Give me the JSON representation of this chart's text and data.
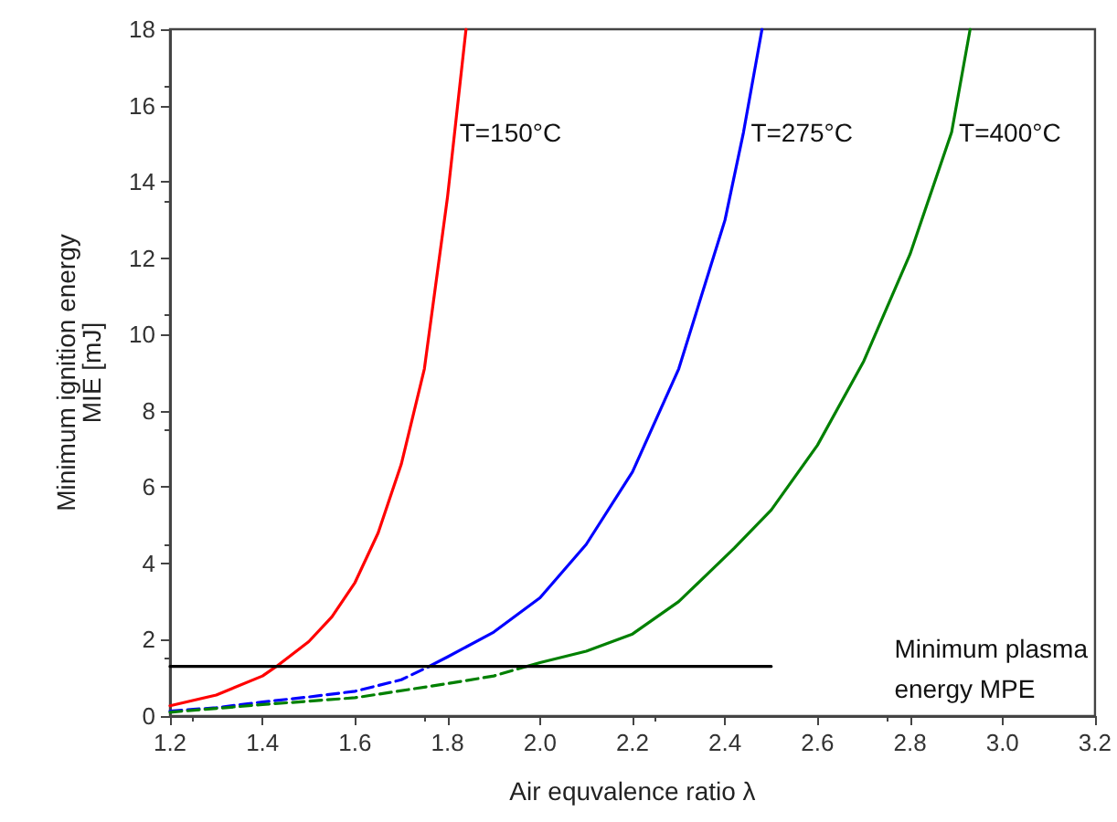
{
  "chart_data": {
    "type": "line",
    "xlabel": "Air equvalence ratio λ",
    "ylabel": "Minimum ignition energy\nMIE [mJ]",
    "xlim": [
      1.2,
      3.2
    ],
    "xticks": [
      1.2,
      1.4,
      1.6,
      1.8,
      {
        "value": 2,
        "label": "2.0"
      },
      2.2,
      2.4,
      2.6,
      2.8,
      {
        "value": 3,
        "label": "3.0"
      },
      3.2
    ],
    "ylim": [
      0,
      18
    ],
    "yticks": [
      0,
      2,
      4,
      6,
      8,
      10,
      12,
      14,
      16,
      18
    ],
    "grid": false,
    "marker": "none",
    "series": [
      {
        "color": "#ff0000",
        "line_style": "solid",
        "x": [
          1.2,
          1.3,
          1.4,
          1.43,
          1.5,
          1.55,
          1.6,
          1.65,
          1.7,
          1.75,
          1.8,
          1.84
        ],
        "values": [
          0.27,
          0.55,
          1.05,
          1.3,
          1.95,
          2.6,
          3.5,
          4.8,
          6.6,
          9.1,
          13.6,
          18
        ]
      },
      {
        "color": "#0000ff",
        "line_style": "dashed",
        "x": [
          1.2,
          1.3,
          1.4,
          1.5,
          1.6,
          1.7,
          1.76
        ],
        "values": [
          0.13,
          0.22,
          0.37,
          0.5,
          0.65,
          0.95,
          1.3
        ]
      },
      {
        "color": "#0000ff",
        "line_style": "solid",
        "x": [
          1.76,
          1.8,
          1.9,
          2.0,
          2.1,
          2.2,
          2.3,
          2.4,
          2.44,
          2.48
        ],
        "values": [
          1.3,
          1.55,
          2.2,
          3.1,
          4.5,
          6.4,
          9.1,
          13,
          15.3,
          18
        ]
      },
      {
        "color": "#008000",
        "line_style": "dashed",
        "x": [
          1.2,
          1.4,
          1.6,
          1.8,
          1.9,
          1.97
        ],
        "values": [
          0.1,
          0.3,
          0.48,
          0.85,
          1.05,
          1.3
        ]
      },
      {
        "color": "#008000",
        "line_style": "solid",
        "x": [
          1.97,
          2.0,
          2.1,
          2.2,
          2.3,
          2.42,
          2.5,
          2.6,
          2.7,
          2.8,
          2.89,
          2.93
        ],
        "values": [
          1.3,
          1.4,
          1.7,
          2.15,
          3.0,
          4.4,
          5.4,
          7.1,
          9.3,
          12.1,
          15.3,
          18
        ]
      },
      {
        "color": "#000000",
        "line_style": "solid",
        "x": [
          1.2,
          2.5
        ],
        "values": [
          1.3,
          1.3
        ]
      }
    ],
    "annotations": [
      {
        "text": "T=150°C",
        "x": 1.81,
        "y": 15.3
      },
      {
        "text": "T=275°C",
        "x": 2.44,
        "y": 15.3
      },
      {
        "text": "T=400°C",
        "x": 2.89,
        "y": 15.3
      },
      "Minimum plasma\nenergy MPE"
    ]
  }
}
